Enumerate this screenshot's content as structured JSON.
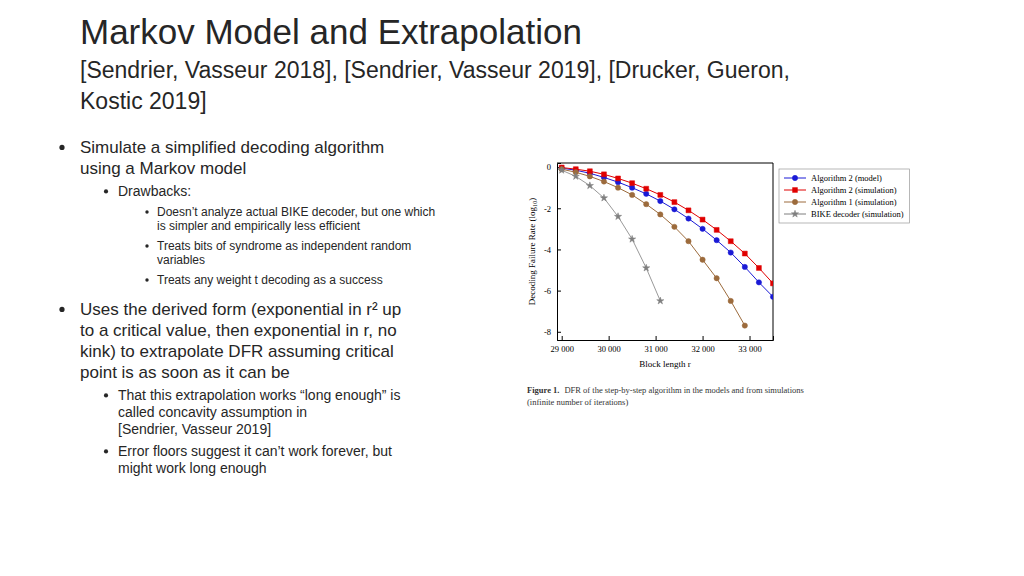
{
  "slide": {
    "title": "Markov Model and Extrapolation",
    "subtitle": [
      "[Sendrier, Vasseur 2018], [Sendrier, Vasseur 2019], [Drucker, Gueron,",
      "Kostic 2019]"
    ],
    "bullets": [
      {
        "lines": [
          "Simulate a simplified decoding algorithm",
          "using a Markov model"
        ],
        "children": [
          {
            "lines": [
              "Drawbacks:"
            ],
            "children": [
              {
                "lines": [
                  "Doesn’t analyze actual BIKE decoder, but one which",
                  "is simpler and empirically less efficient"
                ]
              },
              {
                "lines": [
                  "Treats bits of syndrome as independent random",
                  "variables"
                ]
              },
              {
                "lines": [
                  "Treats any weight t decoding as a success"
                ]
              }
            ]
          }
        ]
      },
      {
        "lines": [
          "Uses the derived form (exponential in r² up",
          "to a critical value, then exponential in r, no",
          "kink) to extrapolate DFR assuming critical",
          "point is as soon as it can be"
        ],
        "children": [
          {
            "lines": [
              "That this extrapolation works “long enough” is",
              "called concavity assumption in",
              "[Sendrier, Vasseur 2019]"
            ]
          },
          {
            "lines": [
              "Error floors suggest it can’t work forever, but",
              "might work long enough"
            ]
          }
        ]
      }
    ],
    "figure_caption": {
      "label": "Figure 1.",
      "lines": [
        "DFR of the step-by-step algorithm in the models and from simulations",
        "(infinite number of iterations)"
      ]
    }
  },
  "chart_data": {
    "type": "line",
    "x_label": "Block length r",
    "y_label": "Decoding Failure Rate (log₁₀)",
    "x": [
      29000,
      29300,
      29600,
      29900,
      30200,
      30500,
      30800,
      31100,
      31400,
      31700,
      32000,
      32300,
      32600,
      32900,
      33200,
      33500
    ],
    "series": [
      {
        "name": "Algorithm 2 (model)",
        "color": "#1a1ad6",
        "marker": "circle",
        "line_style": "solid",
        "values": [
          -0.05,
          -0.15,
          -0.3,
          -0.5,
          -0.73,
          -1.0,
          -1.3,
          -1.65,
          -2.05,
          -2.5,
          -3.0,
          -3.55,
          -4.15,
          -4.85,
          -5.6,
          -6.3
        ]
      },
      {
        "name": "Algorithm 2 (simulation)",
        "color": "#e00000",
        "marker": "square",
        "line_style": "solid",
        "values": [
          -0.02,
          -0.1,
          -0.2,
          -0.35,
          -0.55,
          -0.78,
          -1.05,
          -1.35,
          -1.7,
          -2.1,
          -2.55,
          -3.05,
          -3.6,
          -4.2,
          -4.9,
          -5.65
        ]
      },
      {
        "name": "Algorithm 1 (simulation)",
        "color": "#9c6b3c",
        "marker": "circle",
        "line_style": "solid",
        "values": [
          -0.1,
          -0.25,
          -0.45,
          -0.7,
          -1.0,
          -1.35,
          -1.8,
          -2.3,
          -2.9,
          -3.6,
          -4.5,
          -5.4,
          -6.5,
          -7.7,
          null,
          null
        ]
      },
      {
        "name": "BIKE decoder (simulation)",
        "color": "#7f7f7f",
        "marker": "star",
        "line_style": "solid",
        "values": [
          -0.15,
          -0.45,
          -0.9,
          -1.5,
          -2.4,
          -3.5,
          -4.9,
          -6.5,
          null,
          null,
          null,
          null,
          null,
          null,
          null,
          null
        ]
      }
    ],
    "xlim": [
      28900,
      33500
    ],
    "ylim": [
      -8.4,
      0.2
    ],
    "xticks": [
      {
        "value": 29000,
        "label": "29 000"
      },
      {
        "value": 30000,
        "label": "30 000"
      },
      {
        "value": 31000,
        "label": "31 000"
      },
      {
        "value": 32000,
        "label": "32 000"
      },
      {
        "value": 33000,
        "label": "33 000"
      }
    ],
    "yticks": [
      0,
      -2,
      -4,
      -6,
      -8
    ],
    "grid": false,
    "legend": "right"
  }
}
